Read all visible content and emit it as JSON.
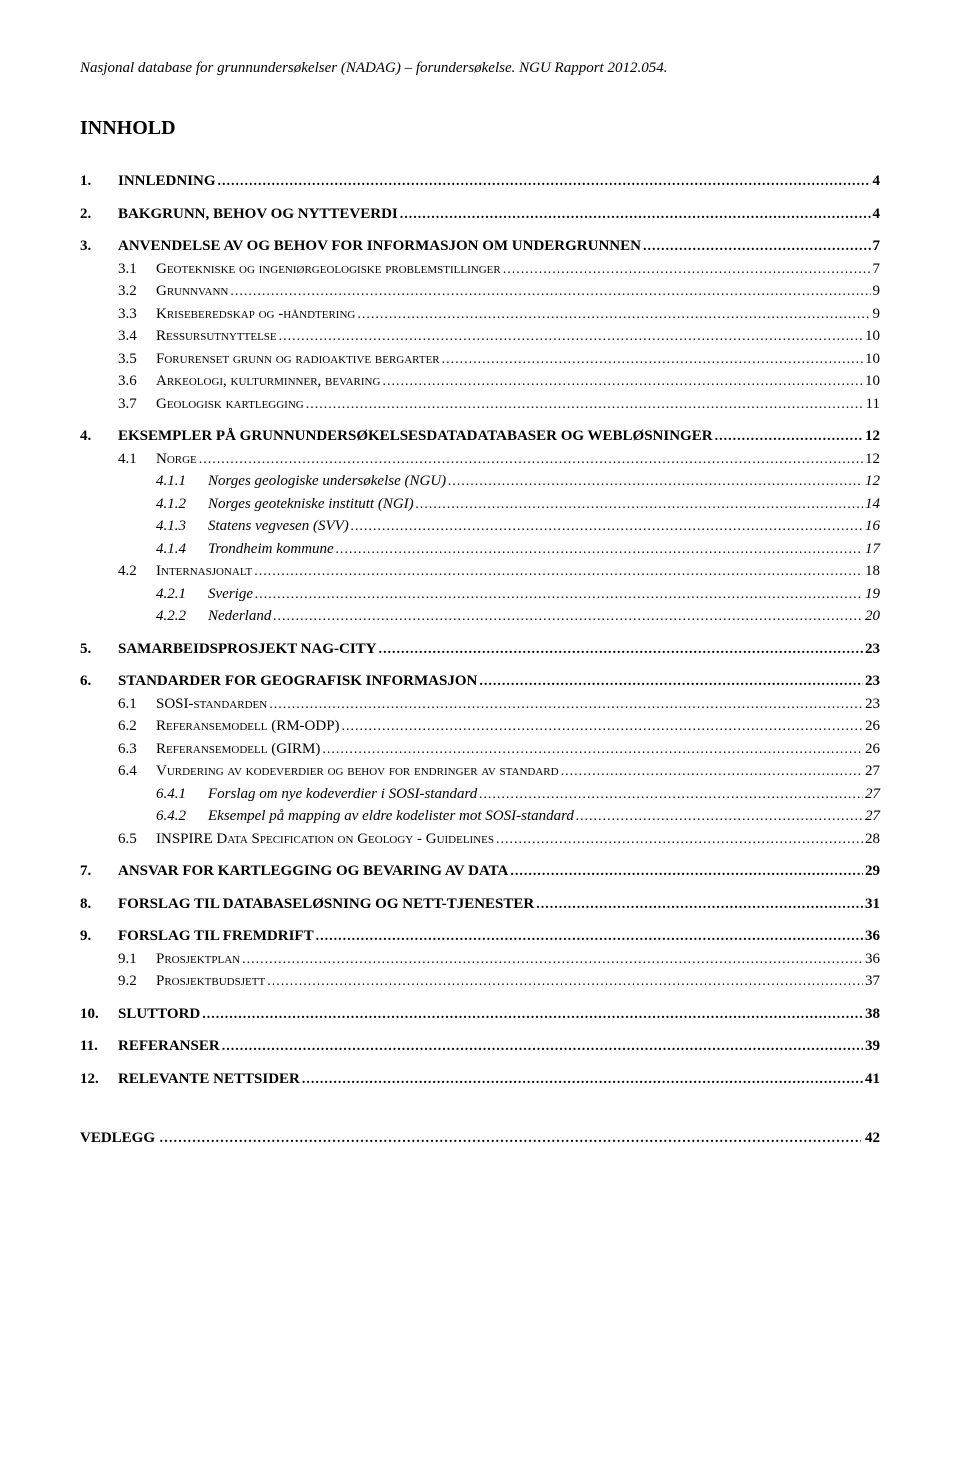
{
  "header": "Nasjonal database for grunnundersøkelser (NADAG) – forundersøkelse. NGU Rapport 2012.054.",
  "title": "INNHOLD",
  "toc": [
    {
      "level": 1,
      "num": "1.",
      "text": "INNLEDNING",
      "page": "4"
    },
    {
      "level": 1,
      "num": "2.",
      "text": "BAKGRUNN, BEHOV OG NYTTEVERDI",
      "page": "4"
    },
    {
      "level": 1,
      "num": "3.",
      "text": "ANVENDELSE AV OG BEHOV FOR INFORMASJON OM UNDERGRUNNEN",
      "page": "7"
    },
    {
      "level": 2,
      "num": "3.1",
      "text": "Geotekniske og ingeniørgeologiske problemstillinger",
      "page": "7",
      "sc": true
    },
    {
      "level": 2,
      "num": "3.2",
      "text": "Grunnvann",
      "page": "9",
      "sc": true
    },
    {
      "level": 2,
      "num": "3.3",
      "text": "Kriseberedskap og -håndtering",
      "page": "9",
      "sc": true
    },
    {
      "level": 2,
      "num": "3.4",
      "text": "Ressursutnyttelse",
      "page": "10",
      "sc": true
    },
    {
      "level": 2,
      "num": "3.5",
      "text": "Forurenset grunn og radioaktive bergarter",
      "page": "10",
      "sc": true
    },
    {
      "level": 2,
      "num": "3.6",
      "text": "Arkeologi, kulturminner, bevaring",
      "page": "10",
      "sc": true
    },
    {
      "level": 2,
      "num": "3.7",
      "text": "Geologisk kartlegging",
      "page": "11",
      "sc": true
    },
    {
      "level": 1,
      "num": "4.",
      "text": "EKSEMPLER PÅ GRUNNUNDERSØKELSESDATADATABASER OG WEBLØSNINGER",
      "page": "12"
    },
    {
      "level": 2,
      "num": "4.1",
      "text": "Norge",
      "page": "12",
      "sc": true
    },
    {
      "level": 3,
      "num": "4.1.1",
      "text": "Norges geologiske undersøkelse (NGU)",
      "page": "12"
    },
    {
      "level": 3,
      "num": "4.1.2",
      "text": "Norges geotekniske institutt (NGI)",
      "page": "14"
    },
    {
      "level": 3,
      "num": "4.1.3",
      "text": "Statens vegvesen (SVV)",
      "page": "16"
    },
    {
      "level": 3,
      "num": "4.1.4",
      "text": "Trondheim kommune",
      "page": "17"
    },
    {
      "level": 2,
      "num": "4.2",
      "text": "Internasjonalt",
      "page": "18",
      "sc": true
    },
    {
      "level": 3,
      "num": "4.2.1",
      "text": "Sverige",
      "page": "19"
    },
    {
      "level": 3,
      "num": "4.2.2",
      "text": "Nederland",
      "page": "20"
    },
    {
      "level": 1,
      "num": "5.",
      "text": "SAMARBEIDSPROSJEKT NAG-CITY",
      "page": "23"
    },
    {
      "level": 1,
      "num": "6.",
      "text": "STANDARDER FOR GEOGRAFISK INFORMASJON",
      "page": "23"
    },
    {
      "level": 2,
      "num": "6.1",
      "text": "SOSI-standarden",
      "page": "23",
      "sc": true
    },
    {
      "level": 2,
      "num": "6.2",
      "text": "Referansemodell (RM-ODP)",
      "page": "26",
      "sc": true
    },
    {
      "level": 2,
      "num": "6.3",
      "text": "Referansemodell (GIRM)",
      "page": "26",
      "sc": true
    },
    {
      "level": 2,
      "num": "6.4",
      "text": "Vurdering av kodeverdier og behov for endringer av standard",
      "page": "27",
      "sc": true
    },
    {
      "level": 3,
      "num": "6.4.1",
      "text": "Forslag om nye kodeverdier i SOSI-standard",
      "page": "27"
    },
    {
      "level": 3,
      "num": "6.4.2",
      "text": "Eksempel på mapping av eldre kodelister mot SOSI-standard",
      "page": "27"
    },
    {
      "level": 2,
      "num": "6.5",
      "text": "INSPIRE Data Specification on Geology - Guidelines",
      "page": "28",
      "sc": true
    },
    {
      "level": 1,
      "num": "7.",
      "text": "ANSVAR FOR KARTLEGGING OG BEVARING AV DATA",
      "page": "29"
    },
    {
      "level": 1,
      "num": "8.",
      "text": "FORSLAG TIL DATABASELØSNING OG NETT-TJENESTER",
      "page": "31"
    },
    {
      "level": 1,
      "num": "9.",
      "text": "FORSLAG TIL FREMDRIFT",
      "page": "36"
    },
    {
      "level": 2,
      "num": "9.1",
      "text": "Prosjektplan",
      "page": "36",
      "sc": true
    },
    {
      "level": 2,
      "num": "9.2",
      "text": "Prosjektbudsjett",
      "page": "37",
      "sc": true
    },
    {
      "level": 1,
      "num": "10.",
      "text": "SLUTTORD",
      "page": "38"
    },
    {
      "level": 1,
      "num": "11.",
      "text": "REFERANSER",
      "page": "39"
    },
    {
      "level": 1,
      "num": "12.",
      "text": "RELEVANTE NETTSIDER",
      "page": "41"
    }
  ],
  "vedlegg": {
    "label": "VEDLEGG",
    "page": "42"
  }
}
